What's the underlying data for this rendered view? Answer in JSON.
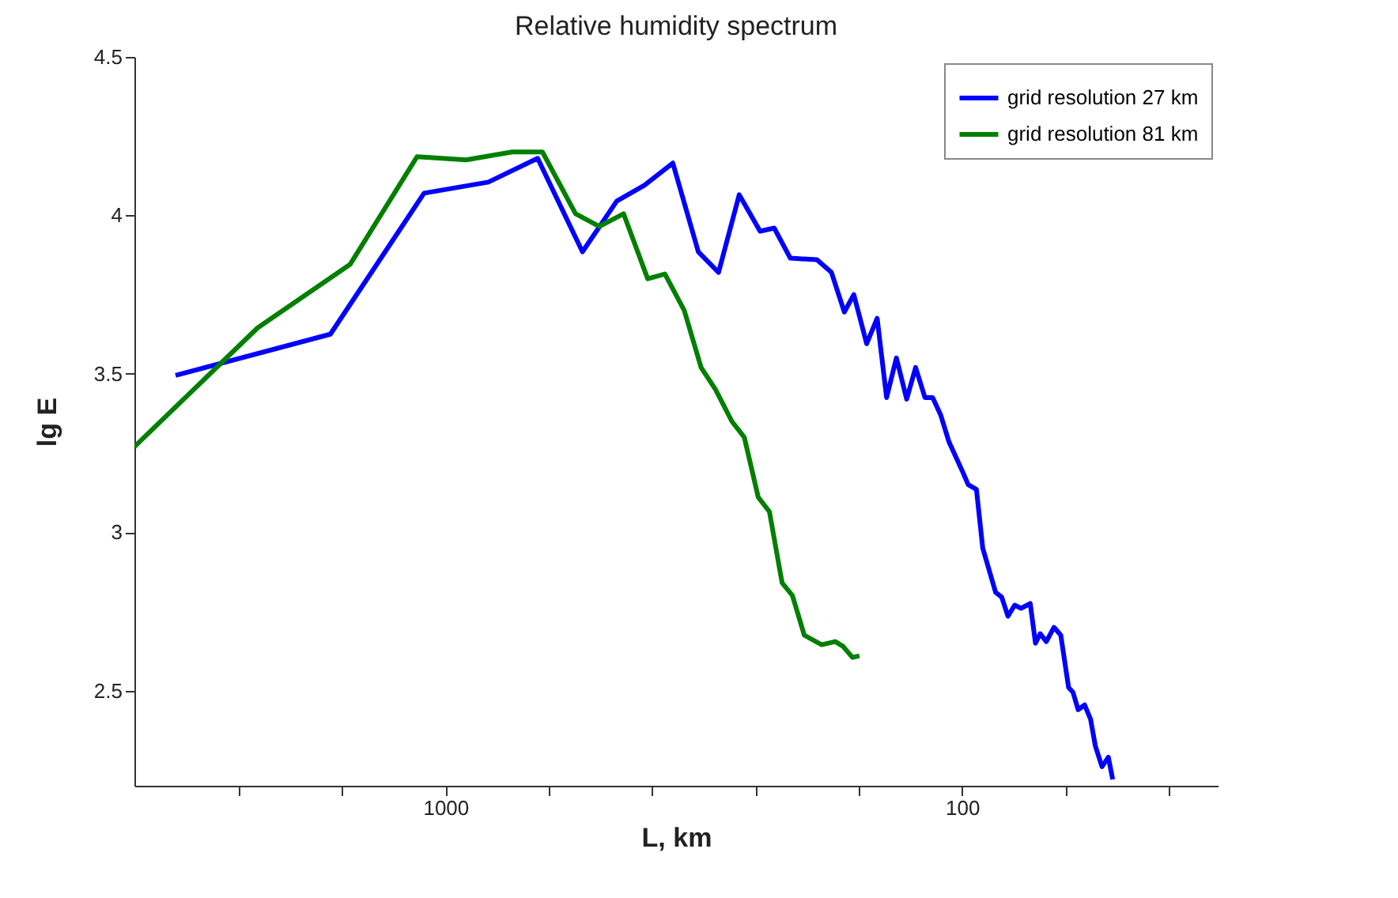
{
  "chart_data": {
    "type": "line",
    "title": "Relative humidity spectrum",
    "xlabel": "L, km",
    "ylabel": "lg E",
    "log": "x",
    "grid": false,
    "legend": "top right",
    "marker": "none",
    "line_style": "solid",
    "xlim": [
      4000,
      32
    ],
    "ylim": [
      2.2,
      4.5
    ],
    "xticks": [
      {
        "value": 2512,
        "label": null
      },
      {
        "value": 1585,
        "label": null
      },
      1000,
      {
        "value": 631,
        "label": null
      },
      {
        "value": 398,
        "label": null
      },
      {
        "value": 251,
        "label": null
      },
      {
        "value": 158,
        "label": null
      },
      100,
      {
        "value": 63.1,
        "label": null
      },
      {
        "value": 39.8,
        "label": null
      }
    ],
    "yticks": [
      2.5,
      3,
      3.5,
      4,
      4.5
    ],
    "series": [
      {
        "name": "grid resolution 27 km",
        "color": "#0000ff",
        "x": [
          3330,
          1670,
          1100,
          826,
          663,
          543,
          466,
          412,
          363,
          324,
          296,
          270,
          246,
          231,
          215,
          191,
          179,
          169,
          162,
          153,
          146,
          140,
          134,
          128,
          123,
          118,
          114,
          110,
          106,
          100,
          97.3,
          93.8,
          91.2,
          86.1,
          83.8,
          81.5,
          79.1,
          76.9,
          73.8,
          72.1,
          70.6,
          68.7,
          66.4,
          64.4,
          62.2,
          61.0,
          59.6,
          57.9,
          56.4,
          55.2,
          53.6,
          52.1,
          51.1
        ],
        "values": [
          3.495,
          3.625,
          4.07,
          4.105,
          4.18,
          3.885,
          4.045,
          4.095,
          4.165,
          3.885,
          3.82,
          4.065,
          3.95,
          3.96,
          3.865,
          3.86,
          3.82,
          3.695,
          3.75,
          3.595,
          3.675,
          3.425,
          3.55,
          3.42,
          3.52,
          3.425,
          3.425,
          3.37,
          3.285,
          3.195,
          3.15,
          3.135,
          2.95,
          2.81,
          2.795,
          2.735,
          2.77,
          2.76,
          2.775,
          2.65,
          2.68,
          2.655,
          2.7,
          2.675,
          2.51,
          2.495,
          2.44,
          2.455,
          2.41,
          2.325,
          2.26,
          2.29,
          2.22
        ]
      },
      {
        "name": "grid resolution 81 km",
        "color": "#007f00",
        "x": [
          4000,
          2310,
          1530,
          1135,
          912,
          743,
          649,
          560,
          504,
          452,
          406,
          376,
          345,
          320,
          300,
          279,
          264,
          248,
          236,
          223,
          213,
          202,
          187,
          176,
          170,
          163,
          158
        ],
        "values": [
          3.27,
          3.645,
          3.845,
          4.185,
          4.175,
          4.2,
          4.2,
          4.005,
          3.965,
          4.005,
          3.8,
          3.815,
          3.7,
          3.52,
          3.45,
          3.35,
          3.3,
          3.11,
          3.065,
          2.84,
          2.8,
          2.675,
          2.645,
          2.655,
          2.64,
          2.605,
          2.61
        ]
      }
    ]
  }
}
